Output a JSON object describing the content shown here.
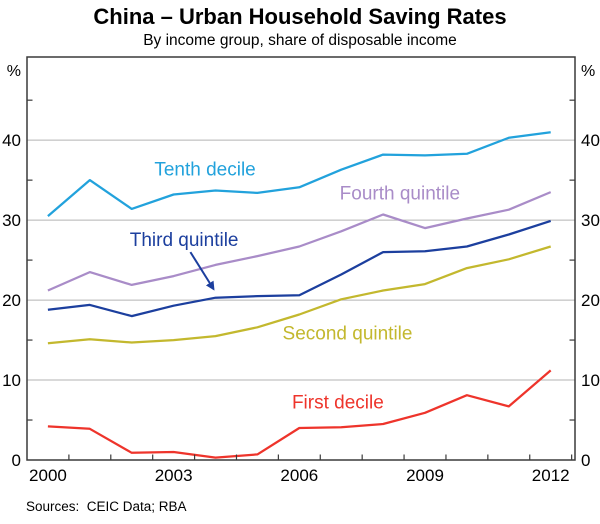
{
  "header": {
    "title": "China – Urban Household Saving Rates",
    "subtitle": "By income group, share of disposable income"
  },
  "footer": {
    "sources": "Sources:  CEIC Data; RBA"
  },
  "colors": {
    "tenth_decile": "#22a2dc",
    "fourth_quintile": "#a98cc8",
    "third_quintile": "#1c3f9e",
    "second_quintile": "#c3b82e",
    "first_decile": "#ee342b",
    "gridline": "#b3b3b3",
    "frame": "#3a3a3a",
    "text": "#000000"
  },
  "chart_data": {
    "type": "line",
    "title": "China – Urban Household Saving Rates",
    "subtitle": "By income group, share of disposable income",
    "x": [
      2000,
      2001,
      2002,
      2003,
      2004,
      2005,
      2006,
      2007,
      2008,
      2009,
      2010,
      2011,
      2012
    ],
    "series": [
      {
        "name": "Tenth decile",
        "color": "#22a2dc",
        "values": [
          30.5,
          35.0,
          31.4,
          33.2,
          33.7,
          33.4,
          34.1,
          36.3,
          38.2,
          38.1,
          38.3,
          40.3,
          41.0
        ],
        "label": {
          "x": 2003.75,
          "y": 36.4
        }
      },
      {
        "name": "Fourth quintile",
        "color": "#a98cc8",
        "values": [
          21.2,
          23.5,
          21.9,
          23.0,
          24.4,
          25.5,
          26.7,
          28.6,
          30.7,
          29.0,
          30.2,
          31.3,
          33.5
        ],
        "label": {
          "x": 2008.4,
          "y": 33.4
        }
      },
      {
        "name": "Third quintile",
        "color": "#1c3f9e",
        "values": [
          18.8,
          19.4,
          18.0,
          19.3,
          20.3,
          20.5,
          20.6,
          23.2,
          26.0,
          26.1,
          26.7,
          28.2,
          29.9
        ],
        "label": {
          "x": 2003.25,
          "y": 27.6
        }
      },
      {
        "name": "Second quintile",
        "color": "#c3b82e",
        "values": [
          14.6,
          15.1,
          14.7,
          15.0,
          15.5,
          16.6,
          18.2,
          20.1,
          21.2,
          22.0,
          24.0,
          25.1,
          26.7
        ],
        "label": {
          "x": 2007.15,
          "y": 15.9
        }
      },
      {
        "name": "First decile",
        "color": "#ee342b",
        "values": [
          4.2,
          3.9,
          0.9,
          1.0,
          0.3,
          0.7,
          4.0,
          4.1,
          4.5,
          5.9,
          8.1,
          6.7,
          11.2
        ],
        "label": {
          "x": 2006.92,
          "y": 7.25
        }
      }
    ],
    "annotation_arrow": {
      "series": "Third quintile",
      "from": {
        "x": 2003.4,
        "y": 26.0
      },
      "to": {
        "x": 2003.95,
        "y": 21.4
      }
    },
    "ylabel_left": "%",
    "ylabel_right": "%",
    "xticks": [
      2000,
      2003,
      2006,
      2009,
      2012
    ],
    "yticks": [
      0,
      10,
      20,
      30,
      40
    ],
    "minor_ytick_start": 5,
    "minor_ytick_step": 10,
    "xlim": [
      1999.5,
      2012.58
    ],
    "ylim": [
      0,
      50.4
    ],
    "grid": "horizontal-at-labeled-yticks",
    "legend_position": "inline-labels-on-lines"
  }
}
